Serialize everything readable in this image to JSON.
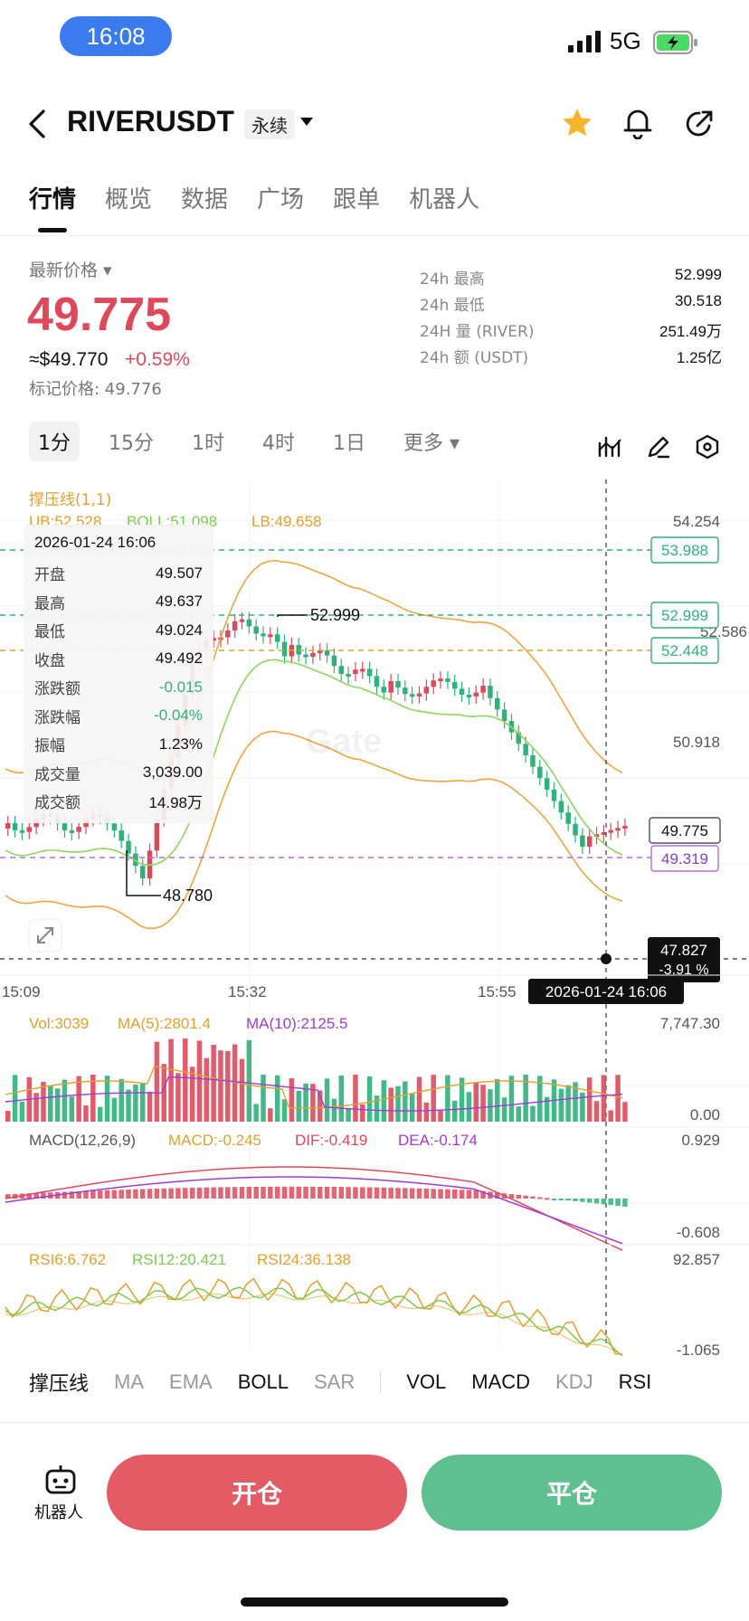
{
  "status_bar": {
    "time": "16:08",
    "network": "5G"
  },
  "header": {
    "symbol": "RIVERUSDT",
    "contract_type": "永续"
  },
  "tabs": [
    {
      "label": "行情",
      "active": true
    },
    {
      "label": "概览"
    },
    {
      "label": "数据"
    },
    {
      "label": "广场"
    },
    {
      "label": "跟单"
    },
    {
      "label": "机器人"
    }
  ],
  "price": {
    "label": "最新价格",
    "last": "49.775",
    "usd": "≈$49.770",
    "change_pct": "+0.59%",
    "mark": "标记价格: 49.776"
  },
  "stats": [
    {
      "label": "24h  最高",
      "value": "52.999"
    },
    {
      "label": "24h  最低",
      "value": "30.518"
    },
    {
      "label": "24H  量 (RIVER)",
      "value": "251.49万"
    },
    {
      "label": "24h  额 (USDT)",
      "value": "1.25亿"
    }
  ],
  "intervals": [
    {
      "label": "1分",
      "active": true
    },
    {
      "label": "15分"
    },
    {
      "label": "1时"
    },
    {
      "label": "4时"
    },
    {
      "label": "1日"
    },
    {
      "label": "更多"
    }
  ],
  "chart": {
    "indicator_title": "撑压线(1,1)",
    "boll_legend": {
      "ub": "UB:52.528",
      "boll": "BOLL:51.098",
      "lb": "LB:49.658"
    },
    "y_ticks": [
      "54.254",
      "52.586",
      "50.918"
    ],
    "level_tags": [
      "53.988",
      "52.999",
      "52.448"
    ],
    "last_price_tag": "49.775",
    "avg_tag": "49.319",
    "high_marker": "52.999",
    "low_marker": "48.780",
    "cross_price": "47.827",
    "cross_pct": "-3.91 %",
    "x_ticks": [
      "15:09",
      "15:32",
      "15:55"
    ],
    "cross_time": "2026-01-24 16:06",
    "watermark": "Gate"
  },
  "osd": {
    "date": "2026-01-24 16:06",
    "rows": [
      {
        "k": "开盘",
        "v": "49.507"
      },
      {
        "k": "最高",
        "v": "49.637"
      },
      {
        "k": "最低",
        "v": "49.024"
      },
      {
        "k": "收盘",
        "v": "49.492"
      },
      {
        "k": "涨跌额",
        "v": "-0.015"
      },
      {
        "k": "涨跌幅",
        "v": "-0.04%"
      },
      {
        "k": "振幅",
        "v": "1.23%"
      },
      {
        "k": "成交量",
        "v": "3,039.00"
      },
      {
        "k": "成交额",
        "v": "14.98万"
      }
    ]
  },
  "volume_panel": {
    "vol": "Vol:3039",
    "ma5": "MA(5):2801.4",
    "ma10": "MA(10):2125.5",
    "max": "7,747.30",
    "min": "0.00"
  },
  "macd_panel": {
    "title": "MACD(12,26,9)",
    "macd": "MACD:-0.245",
    "dif": "DIF:-0.419",
    "dea": "DEA:-0.174",
    "max": "0.929",
    "min": "-0.608"
  },
  "rsi_panel": {
    "rsi6": "RSI6:6.762",
    "rsi12": "RSI12:20.421",
    "rsi24": "RSI24:36.138",
    "max": "92.857",
    "min": "-1.065"
  },
  "indicators": [
    {
      "label": "撑压线",
      "on": true
    },
    {
      "label": "MA",
      "on": false
    },
    {
      "label": "EMA",
      "on": false
    },
    {
      "label": "BOLL",
      "on": true
    },
    {
      "label": "SAR",
      "on": false
    },
    {
      "sep": true
    },
    {
      "label": "VOL",
      "on": true
    },
    {
      "label": "MACD",
      "on": true
    },
    {
      "label": "KDJ",
      "on": false
    },
    {
      "label": "RSI",
      "on": true
    }
  ],
  "bottom": {
    "robot_label": "机器人",
    "open_label": "开仓",
    "close_label": "平仓"
  },
  "colors": {
    "up": "#e0485a",
    "down": "#2db37a",
    "boll_mid": "#8bd85a",
    "boll_band": "#f0a53a",
    "ma10": "#a13bd6"
  }
}
